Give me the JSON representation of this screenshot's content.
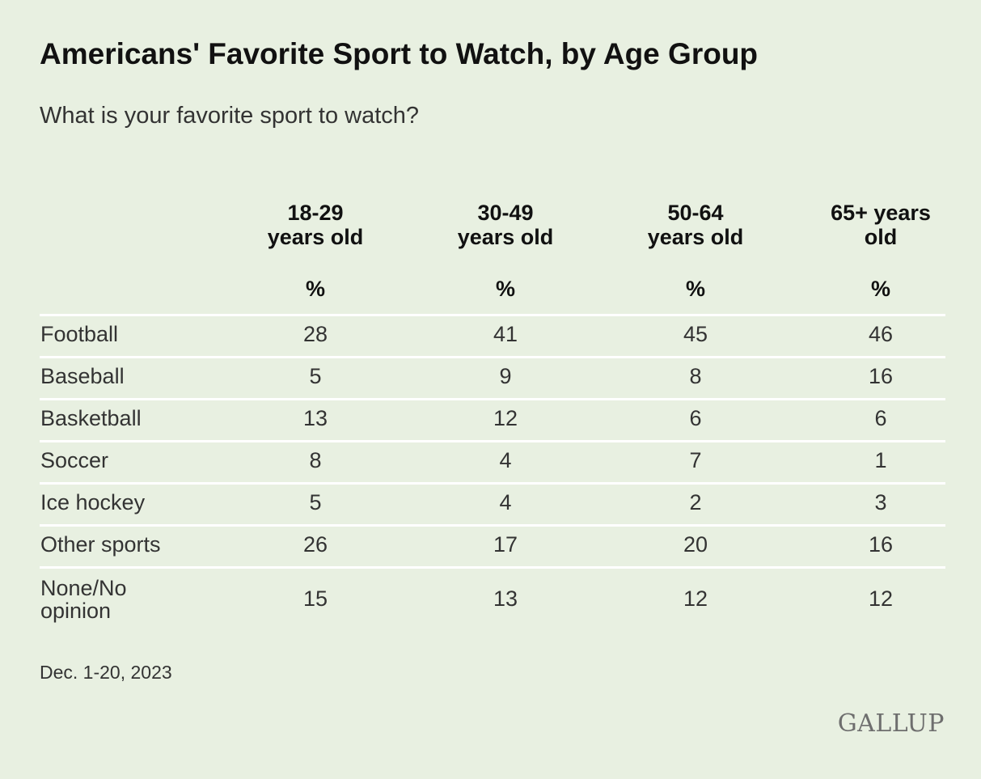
{
  "chart_data": {
    "type": "table",
    "title": "Americans' Favorite Sport to Watch, by Age Group",
    "subtitle": "What is your favorite sport to watch?",
    "columns": [
      {
        "line1": "18-29",
        "line2": "years old",
        "unit": "%"
      },
      {
        "line1": "30-49",
        "line2": "years old",
        "unit": "%"
      },
      {
        "line1": "50-64",
        "line2": "years old",
        "unit": "%"
      },
      {
        "line1": "65+ years",
        "line2": "old",
        "unit": "%"
      }
    ],
    "rows": [
      {
        "label": "Football",
        "values": [
          "28",
          "41",
          "45",
          "46"
        ]
      },
      {
        "label": "Baseball",
        "values": [
          "5",
          "9",
          "8",
          "16"
        ]
      },
      {
        "label": "Basketball",
        "values": [
          "13",
          "12",
          "6",
          "6"
        ]
      },
      {
        "label": "Soccer",
        "values": [
          "8",
          "4",
          "7",
          "1"
        ]
      },
      {
        "label": "Ice hockey",
        "values": [
          "5",
          "4",
          "2",
          "3"
        ]
      },
      {
        "label": "Other sports",
        "values": [
          "26",
          "17",
          "20",
          "16"
        ]
      },
      {
        "label": "None/No opinion",
        "values": [
          "15",
          "13",
          "12",
          "12"
        ]
      }
    ],
    "note": "Dec. 1-20, 2023"
  },
  "brand": {
    "logo_text": "GALLUP",
    "background": "#e8f0e1",
    "divider": "#ffffff"
  }
}
